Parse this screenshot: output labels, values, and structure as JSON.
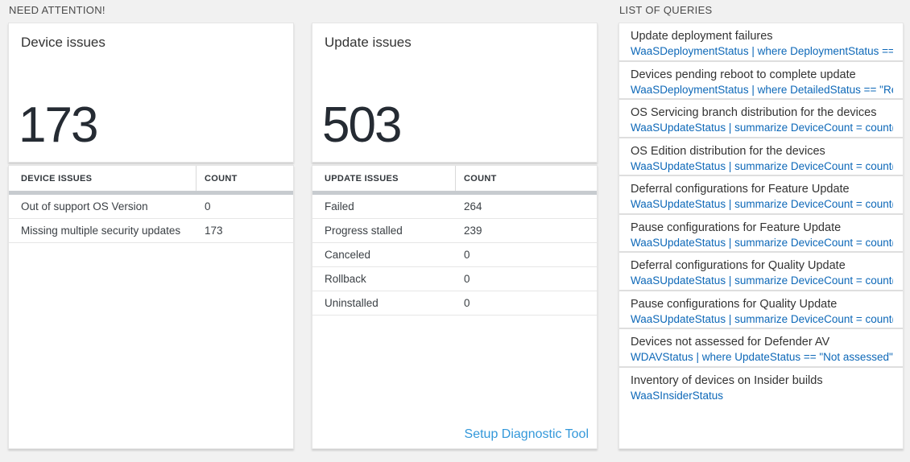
{
  "sections": {
    "need_attention": "NEED ATTENTION!",
    "list_of_queries": "LIST OF QUERIES"
  },
  "device_card": {
    "title": "Device issues",
    "total": "173",
    "table": {
      "headers": [
        "DEVICE ISSUES",
        "COUNT"
      ],
      "rows": [
        {
          "label": "Out of support OS Version",
          "count": "0"
        },
        {
          "label": "Missing multiple security updates",
          "count": "173"
        }
      ]
    }
  },
  "update_card": {
    "title": "Update issues",
    "total": "503",
    "table": {
      "headers": [
        "UPDATE ISSUES",
        "COUNT"
      ],
      "rows": [
        {
          "label": "Failed",
          "count": "264"
        },
        {
          "label": "Progress stalled",
          "count": "239"
        },
        {
          "label": "Canceled",
          "count": "0"
        },
        {
          "label": "Rollback",
          "count": "0"
        },
        {
          "label": "Uninstalled",
          "count": "0"
        }
      ]
    },
    "link_label": "Setup Diagnostic Tool"
  },
  "queries": {
    "items": [
      {
        "title": "Update deployment failures",
        "query": "WaaSDeploymentStatus | where DeploymentStatus == \"Failed\" |..."
      },
      {
        "title": "Devices pending reboot to complete update",
        "query": "WaaSDeploymentStatus | where DetailedStatus == \"Reboot pend..."
      },
      {
        "title": "OS Servicing branch distribution for the devices",
        "query": "WaaSUpdateStatus | summarize DeviceCount = count() by OSSer..."
      },
      {
        "title": "OS Edition distribution for the devices",
        "query": "WaaSUpdateStatus | summarize DeviceCount = count() by OSEdit..."
      },
      {
        "title": "Deferral configurations for Feature Update",
        "query": "WaaSUpdateStatus | summarize DeviceCount = count() by Featur..."
      },
      {
        "title": "Pause configurations for Feature Update",
        "query": "WaaSUpdateStatus | summarize DeviceCount = count() by Featur..."
      },
      {
        "title": "Deferral configurations for Quality Update",
        "query": "WaaSUpdateStatus | summarize DeviceCount = count() by Qualit..."
      },
      {
        "title": "Pause configurations for Quality Update",
        "query": "WaaSUpdateStatus | summarize DeviceCount = count() by Qualit..."
      },
      {
        "title": "Devices not assessed for Defender AV",
        "query": "WDAVStatus | where UpdateStatus == \"Not assessed\" | render ta..."
      },
      {
        "title": "Inventory of devices on Insider builds",
        "query": "WaaSInsiderStatus"
      }
    ]
  },
  "colors": {
    "query_blue": "#0d68b8",
    "link_blue": "#3398da",
    "accent_number": "#252b33",
    "page_background": "#f1f1f1"
  }
}
